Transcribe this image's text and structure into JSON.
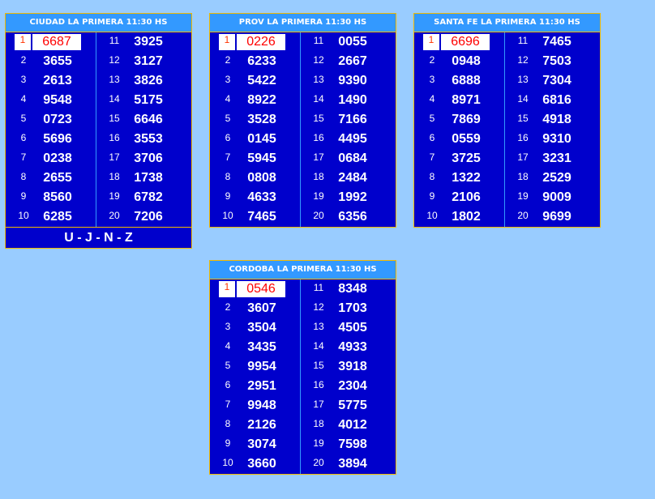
{
  "panels": [
    {
      "title": "CIUDAD LA PRIMERA 11:30 HS",
      "numbers": [
        "6687",
        "3655",
        "2613",
        "9548",
        "0723",
        "5696",
        "0238",
        "2655",
        "8560",
        "6285",
        "3925",
        "3127",
        "3826",
        "5175",
        "6646",
        "3553",
        "3706",
        "1738",
        "6782",
        "7206"
      ],
      "footer": "U - J - N - Z"
    },
    {
      "title": "PROV LA PRIMERA 11:30 HS",
      "numbers": [
        "0226",
        "6233",
        "5422",
        "8922",
        "3528",
        "0145",
        "5945",
        "0808",
        "4633",
        "7465",
        "0055",
        "2667",
        "9390",
        "1490",
        "7166",
        "4495",
        "0684",
        "2484",
        "1992",
        "6356"
      ]
    },
    {
      "title": "SANTA FE LA PRIMERA 11:30 HS",
      "numbers": [
        "6696",
        "0948",
        "6888",
        "8971",
        "7869",
        "0559",
        "3725",
        "1322",
        "2106",
        "1802",
        "7465",
        "7503",
        "7304",
        "6816",
        "4918",
        "9310",
        "3231",
        "2529",
        "9009",
        "9699"
      ]
    },
    {
      "title": "CORDOBA LA PRIMERA 11:30 HS",
      "numbers": [
        "0546",
        "3607",
        "3504",
        "3435",
        "9954",
        "2951",
        "9948",
        "2126",
        "3074",
        "3660",
        "8348",
        "1703",
        "4505",
        "4933",
        "3918",
        "2304",
        "5775",
        "4012",
        "7598",
        "3894"
      ]
    }
  ],
  "colors": {
    "background": "#99ccff",
    "panel": "#0000cc",
    "header": "#3399ff",
    "border": "#f0b800",
    "highlight": "#ff0000"
  }
}
